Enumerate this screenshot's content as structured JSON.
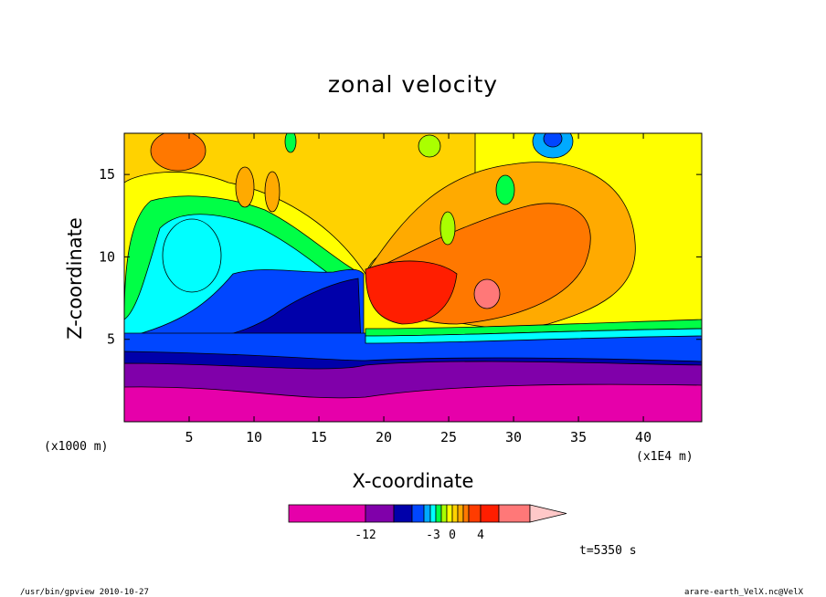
{
  "chart_data": {
    "type": "heatmap",
    "title": "zonal velocity",
    "xlabel": "X-coordinate",
    "ylabel": "Z-coordinate",
    "x_unit": "(x1E4 m)",
    "y_unit": "(x1000 m)",
    "xlim": [
      0,
      44.5
    ],
    "ylim": [
      0,
      17.5
    ],
    "x_ticks": [
      5,
      10,
      15,
      20,
      25,
      30,
      35,
      40
    ],
    "y_ticks": [
      5,
      10,
      15
    ],
    "colorbar": {
      "colors": [
        "#e600aa",
        "#8000aa",
        "#0000aa",
        "#0046ff",
        "#00aaff",
        "#00ffff",
        "#00ff46",
        "#aaff00",
        "#ffff00",
        "#ffd200",
        "#ffaa00",
        "#ff7800",
        "#ff3c00",
        "#ff1e00",
        "#ff7878",
        "#ffc8c8"
      ],
      "tick_labels": [
        "-12",
        "-3",
        "0",
        "4"
      ]
    },
    "annotation": "t=5350 s"
  },
  "footer": {
    "left": "/usr/bin/gpview  2010-10-27",
    "right": "arare-earth_VelX.nc@VelX"
  }
}
